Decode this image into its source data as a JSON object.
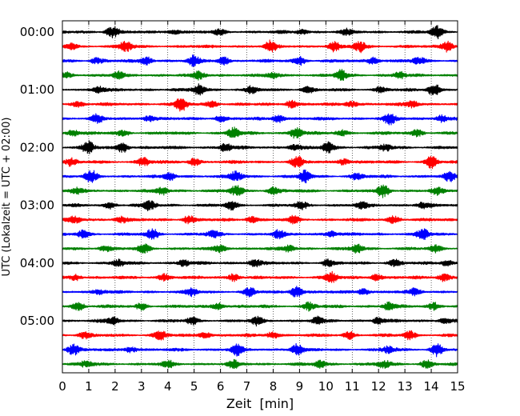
{
  "chart_data": {
    "type": "line",
    "plot_kind": "helicorder",
    "xlabel": "Zeit  [min]",
    "ylabel": "UTC (Lokalzeit = UTC + 02:00)",
    "xlim": [
      0,
      15
    ],
    "x_ticks": [
      0,
      1,
      2,
      3,
      4,
      5,
      6,
      7,
      8,
      9,
      10,
      11,
      12,
      13,
      14,
      15
    ],
    "x_tick_labels": [
      "0",
      "1",
      "2",
      "3",
      "4",
      "5",
      "6",
      "7",
      "8",
      "9",
      "10",
      "11",
      "12",
      "13",
      "14",
      "15"
    ],
    "y_tick_labels": [
      "00:00",
      "01:00",
      "02:00",
      "03:00",
      "04:00",
      "05:00"
    ],
    "y_tick_rows": [
      0,
      4,
      8,
      12,
      16,
      20
    ],
    "trace_count": 24,
    "minutes_per_trace": 15,
    "trace_colors": [
      "#000000",
      "#ff0000",
      "#0000ff",
      "#008000"
    ],
    "grid": true,
    "grid_style": "dotted-vertical",
    "bursts": [
      [
        [
          1.9,
          0.9
        ],
        [
          4.2,
          0.35
        ],
        [
          6.0,
          0.4
        ],
        [
          9.1,
          0.3
        ],
        [
          10.8,
          0.35
        ],
        [
          14.2,
          0.85
        ]
      ],
      [
        [
          0.3,
          0.4
        ],
        [
          2.4,
          0.8
        ],
        [
          7.9,
          0.75
        ],
        [
          10.3,
          0.6
        ],
        [
          11.3,
          0.85
        ],
        [
          14.6,
          0.8
        ]
      ],
      [
        [
          1.3,
          0.5
        ],
        [
          3.2,
          0.6
        ],
        [
          5.0,
          0.75
        ],
        [
          6.1,
          0.55
        ],
        [
          9.0,
          0.6
        ],
        [
          11.8,
          0.55
        ],
        [
          13.5,
          0.5
        ]
      ],
      [
        [
          0.2,
          0.4
        ],
        [
          2.1,
          0.45
        ],
        [
          5.2,
          0.5
        ],
        [
          8.0,
          0.4
        ],
        [
          10.6,
          0.75
        ],
        [
          12.8,
          0.45
        ]
      ],
      [
        [
          1.4,
          0.45
        ],
        [
          5.2,
          0.8
        ],
        [
          7.2,
          0.45
        ],
        [
          9.3,
          0.45
        ],
        [
          12.1,
          0.5
        ],
        [
          14.1,
          0.95
        ]
      ],
      [
        [
          0.6,
          0.45
        ],
        [
          4.5,
          0.95
        ],
        [
          5.7,
          0.55
        ],
        [
          8.7,
          0.6
        ],
        [
          11.0,
          0.45
        ],
        [
          13.3,
          0.5
        ]
      ],
      [
        [
          1.3,
          0.55
        ],
        [
          3.3,
          0.5
        ],
        [
          6.0,
          0.45
        ],
        [
          8.2,
          0.55
        ],
        [
          12.4,
          0.8
        ],
        [
          14.4,
          0.5
        ]
      ],
      [
        [
          0.4,
          0.45
        ],
        [
          2.3,
          0.45
        ],
        [
          6.5,
          0.8
        ],
        [
          8.9,
          0.85
        ],
        [
          10.6,
          0.45
        ],
        [
          13.5,
          0.5
        ]
      ],
      [
        [
          1.0,
          0.85
        ],
        [
          2.3,
          0.7
        ],
        [
          6.2,
          0.55
        ],
        [
          8.8,
          0.45
        ],
        [
          10.1,
          0.75
        ],
        [
          12.3,
          0.45
        ]
      ],
      [
        [
          0.3,
          0.55
        ],
        [
          3.1,
          0.65
        ],
        [
          5.0,
          0.5
        ],
        [
          8.9,
          0.75
        ],
        [
          10.7,
          0.5
        ],
        [
          14.0,
          0.8
        ]
      ],
      [
        [
          1.1,
          0.8
        ],
        [
          4.1,
          0.5
        ],
        [
          6.6,
          0.75
        ],
        [
          9.2,
          0.85
        ],
        [
          11.2,
          0.5
        ],
        [
          14.7,
          0.6
        ]
      ],
      [
        [
          0.5,
          0.4
        ],
        [
          3.8,
          0.5
        ],
        [
          6.6,
          0.85
        ],
        [
          8.0,
          0.55
        ],
        [
          12.2,
          0.85
        ],
        [
          14.2,
          0.45
        ]
      ],
      [
        [
          1.8,
          0.45
        ],
        [
          3.3,
          0.75
        ],
        [
          6.4,
          0.6
        ],
        [
          9.1,
          0.55
        ],
        [
          11.4,
          0.45
        ],
        [
          13.7,
          0.5
        ]
      ],
      [
        [
          0.5,
          0.45
        ],
        [
          2.2,
          0.5
        ],
        [
          4.8,
          0.55
        ],
        [
          7.2,
          0.45
        ],
        [
          8.8,
          0.5
        ],
        [
          12.6,
          0.55
        ]
      ],
      [
        [
          0.8,
          0.5
        ],
        [
          3.4,
          0.75
        ],
        [
          5.7,
          0.45
        ],
        [
          8.2,
          0.5
        ],
        [
          10.2,
          0.45
        ],
        [
          13.7,
          0.75
        ]
      ],
      [
        [
          1.6,
          0.45
        ],
        [
          3.1,
          0.6
        ],
        [
          6.0,
          0.5
        ],
        [
          8.6,
          0.45
        ],
        [
          11.2,
          0.6
        ],
        [
          14.2,
          0.5
        ]
      ],
      [
        [
          2.1,
          0.55
        ],
        [
          4.6,
          0.45
        ],
        [
          7.3,
          0.55
        ],
        [
          10.1,
          0.45
        ],
        [
          12.6,
          0.5
        ],
        [
          14.6,
          0.45
        ]
      ],
      [
        [
          0.5,
          0.4
        ],
        [
          3.9,
          0.5
        ],
        [
          6.5,
          0.55
        ],
        [
          10.2,
          0.8
        ],
        [
          11.9,
          0.45
        ],
        [
          14.5,
          0.6
        ]
      ],
      [
        [
          1.4,
          0.45
        ],
        [
          4.9,
          0.5
        ],
        [
          7.1,
          0.5
        ],
        [
          8.9,
          0.85
        ],
        [
          11.4,
          0.5
        ],
        [
          13.4,
          0.5
        ]
      ],
      [
        [
          0.6,
          0.6
        ],
        [
          3.0,
          0.45
        ],
        [
          5.9,
          0.5
        ],
        [
          9.4,
          0.6
        ],
        [
          12.4,
          0.55
        ],
        [
          14.1,
          0.55
        ]
      ],
      [
        [
          1.9,
          0.5
        ],
        [
          4.9,
          0.45
        ],
        [
          7.4,
          0.55
        ],
        [
          9.7,
          0.5
        ],
        [
          12.0,
          0.45
        ],
        [
          14.5,
          0.45
        ]
      ],
      [
        [
          0.8,
          0.45
        ],
        [
          3.7,
          0.75
        ],
        [
          5.4,
          0.5
        ],
        [
          8.0,
          0.5
        ],
        [
          10.9,
          0.5
        ],
        [
          13.2,
          0.55
        ]
      ],
      [
        [
          0.4,
          0.85
        ],
        [
          2.6,
          0.45
        ],
        [
          6.6,
          0.75
        ],
        [
          8.9,
          0.8
        ],
        [
          12.4,
          0.5
        ],
        [
          14.2,
          0.85
        ]
      ],
      [
        [
          0.9,
          0.5
        ],
        [
          4.0,
          0.45
        ],
        [
          6.5,
          0.45
        ],
        [
          9.8,
          0.5
        ],
        [
          12.2,
          0.6
        ],
        [
          13.8,
          0.55
        ]
      ]
    ]
  }
}
